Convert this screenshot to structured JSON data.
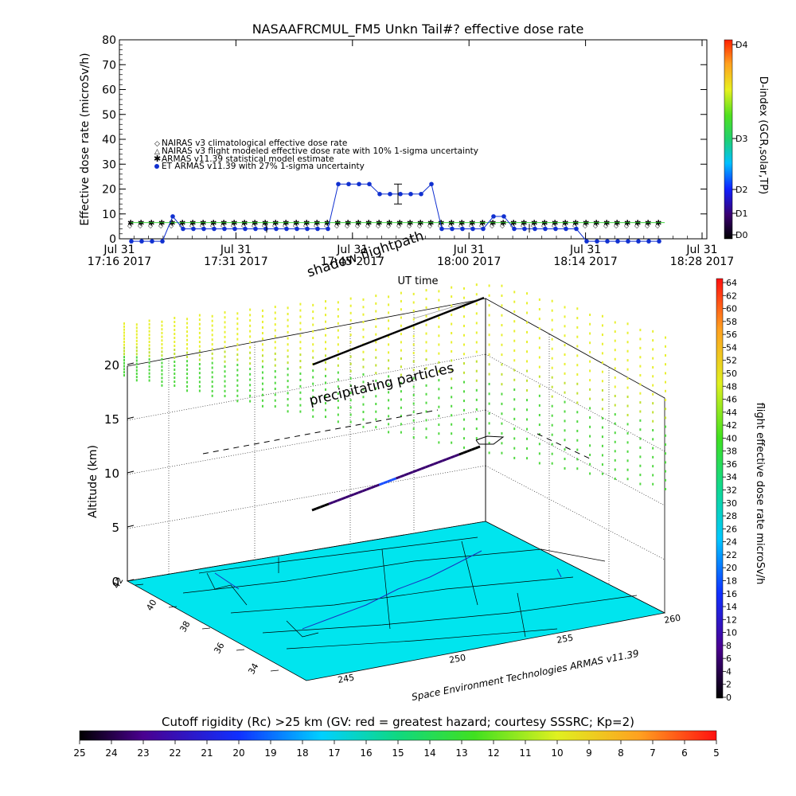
{
  "colors": {
    "nairas_clim": "#ff4040",
    "nairas_flight": "#000000",
    "armas_stat": "#22cc22",
    "et_armas": "#1030d0",
    "map_fill": "#00e5ee",
    "ground_grid": "#000000"
  },
  "chart_data": [
    {
      "type": "line",
      "title": "NASAAFRCMUL_FM5 Unkn Tail#? effective dose rate",
      "xlabel": "UT time",
      "ylabel": "Effective dose rate (microSv/h)",
      "ylim": [
        0,
        80
      ],
      "yticks": [
        "0",
        "10",
        "20",
        "30",
        "40",
        "50",
        "60",
        "70",
        "80"
      ],
      "xticks": [
        {
          "line1": "Jul 31",
          "line2": "17:16 2017"
        },
        {
          "line1": "Jul 31",
          "line2": "17:31 2017"
        },
        {
          "line1": "Jul 31",
          "line2": "17:45 2017"
        },
        {
          "line1": "Jul 31",
          "line2": "18:00 2017"
        },
        {
          "line1": "Jul 31",
          "line2": "18:14 2017"
        },
        {
          "line1": "Jul 31",
          "line2": "18:28 2017"
        }
      ],
      "xlim_minutes": [
        0,
        72
      ],
      "right_axis": {
        "label": "D-index (GCR,solar,TP)",
        "ticks": [
          "D0",
          "D1",
          "D2",
          "D3",
          "D4"
        ]
      },
      "legend": [
        {
          "label": "NAIRAS v3 climatological effective dose rate",
          "marker": "diamond"
        },
        {
          "label": "NAIRAS v3 flight modeled effective dose rate with 10% 1-sigma uncertainty",
          "marker": "triangle"
        },
        {
          "label": "ARMAS v11.39 statistical model estimate",
          "marker": "asterisk"
        },
        {
          "label": "ET ARMAS v11.39 with 27% 1-sigma uncertainty",
          "marker": "dot"
        }
      ],
      "legend_position": "middle-left",
      "series": [
        {
          "name": "ET ARMAS v11.39 with 27% 1-sigma uncertainty",
          "x": [
            0,
            1.5,
            3,
            4.5,
            6,
            7.5,
            9,
            10.5,
            12,
            13.5,
            15,
            16.5,
            18,
            19.5,
            21,
            22.5,
            24,
            25.5,
            27,
            28.5,
            30,
            31.5,
            33,
            34.5,
            36,
            37.5,
            39,
            40.5,
            42,
            43.5,
            45,
            46.5,
            48,
            49.5,
            51,
            52.5,
            54,
            55.5,
            57,
            58.5,
            60,
            61.5,
            63,
            64.5
          ],
          "y": [
            -1,
            -1,
            -1,
            -1,
            9,
            4,
            4,
            4,
            4,
            4,
            4,
            4,
            4,
            4,
            4,
            4,
            4,
            4,
            4,
            4,
            22,
            22,
            22,
            22,
            18,
            18,
            18,
            18,
            18,
            22,
            4,
            4,
            4,
            4,
            4,
            9,
            9,
            4,
            4,
            4,
            4,
            4,
            4,
            4
          ],
          "y_tail": {
            "x": [
              64.5,
              66,
              67.5,
              69,
              70.5,
              72,
              73.5,
              75,
              76.5
            ],
            "y": [
              -1,
              -1,
              -1,
              -1,
              -1,
              -1,
              -1,
              -1,
              -1
            ]
          },
          "errorbar": {
            "x": 37.5,
            "y": 18,
            "sigma": 4
          }
        },
        {
          "name": "ARMAS v11.39 statistical model estimate",
          "x_range_minutes": [
            0,
            85
          ],
          "value": 6.5
        },
        {
          "name": "NAIRAS v3 climatological effective dose rate",
          "x_range_minutes": [
            0,
            85
          ],
          "value": 5.5
        }
      ]
    },
    {
      "type": "scatter",
      "annotations": [
        "shadow flightpath",
        "precipitating particles"
      ],
      "zlabel": "Altitude (km)",
      "zticks": [
        "0",
        "5",
        "10",
        "15",
        "20"
      ],
      "lat_ticks": [
        "42",
        "40",
        "38",
        "36",
        "34"
      ],
      "lon_ticks": [
        "245",
        "250",
        "255",
        "260"
      ],
      "credit": "Space Environment Technologies ARMAS v11.39",
      "flight_colorbar": {
        "label": "flight effective dose rate microSv/h",
        "ticks": [
          "0",
          "2",
          "4",
          "6",
          "8",
          "10",
          "12",
          "14",
          "16",
          "18",
          "20",
          "22",
          "24",
          "26",
          "28",
          "30",
          "32",
          "34",
          "36",
          "38",
          "40",
          "42",
          "44",
          "46",
          "48",
          "50",
          "52",
          "54",
          "56",
          "58",
          "60",
          "62",
          "64"
        ],
        "range": [
          0,
          64
        ]
      },
      "cutoff_colorbar": {
        "label": "Cutoff rigidity (Rc) >25 km (GV: red = greatest hazard; courtesy SSSRC; Kp=2)",
        "ticks": [
          "25",
          "24",
          "23",
          "22",
          "21",
          "20",
          "19",
          "18",
          "17",
          "16",
          "15",
          "14",
          "13",
          "12",
          "11",
          "10",
          "9",
          "8",
          "7",
          "6",
          "5"
        ]
      }
    }
  ]
}
